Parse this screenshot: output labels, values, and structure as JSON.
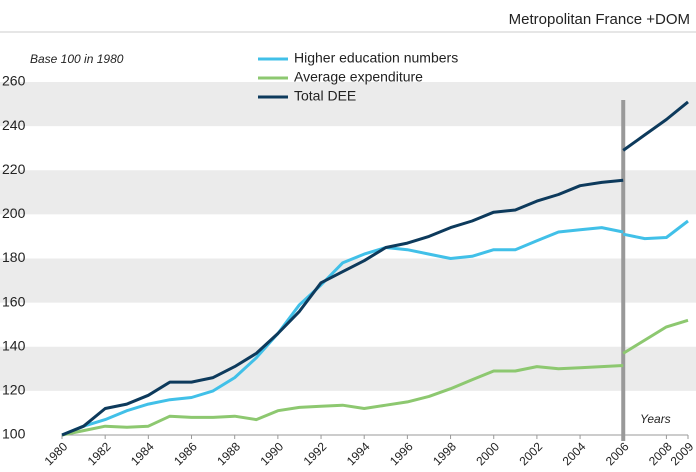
{
  "chart_data": {
    "type": "line",
    "subtitle": "Metropolitan France +DOM",
    "y_annotation": "Base 100 in 1980",
    "x_annotation": "Years",
    "x": [
      1980,
      1981,
      1982,
      1983,
      1984,
      1985,
      1986,
      1987,
      1988,
      1989,
      1990,
      1991,
      1992,
      1993,
      1994,
      1995,
      1996,
      1997,
      1998,
      1999,
      2000,
      2001,
      2002,
      2003,
      2004,
      2005,
      2006,
      null,
      2006,
      2007,
      2008,
      2009
    ],
    "series": [
      {
        "name": "Higher education numbers",
        "color": "#41c0e8",
        "values": [
          100,
          104,
          107,
          111,
          114,
          116,
          117,
          120,
          126,
          135,
          146,
          159,
          168,
          178,
          182,
          185,
          184,
          182,
          180,
          181,
          184,
          184,
          188,
          192,
          193,
          194,
          192,
          null,
          191,
          189,
          189.5,
          197
        ]
      },
      {
        "name": "Average expenditure",
        "color": "#8dc870",
        "values": [
          100,
          102,
          104,
          103.5,
          104,
          108.5,
          108,
          108,
          108.5,
          107,
          111,
          112.5,
          113,
          113.5,
          112,
          113.5,
          115,
          117.5,
          121,
          125,
          129,
          129,
          131,
          130,
          130.5,
          131,
          131.5,
          null,
          137,
          143,
          149,
          152
        ]
      },
      {
        "name": "Total DEE",
        "color": "#0d3a5c",
        "values": [
          100,
          104,
          112,
          114,
          118,
          124,
          124,
          126,
          131,
          137,
          146,
          156,
          169,
          174,
          179,
          185,
          187,
          190,
          194,
          197,
          201,
          202,
          206,
          209,
          213,
          214.5,
          215.5,
          null,
          229,
          236,
          243,
          251
        ]
      }
    ],
    "xlim": [
      1980,
      2009
    ],
    "xticks": [
      1980,
      1982,
      1984,
      1986,
      1988,
      1990,
      1992,
      1994,
      1996,
      1998,
      2000,
      2002,
      2004,
      2006,
      2008,
      2009
    ],
    "ylim": [
      100,
      260
    ],
    "yticks": [
      100,
      120,
      140,
      160,
      180,
      200,
      220,
      240,
      260
    ],
    "grid": "bands",
    "marker_line_x": 2006
  }
}
